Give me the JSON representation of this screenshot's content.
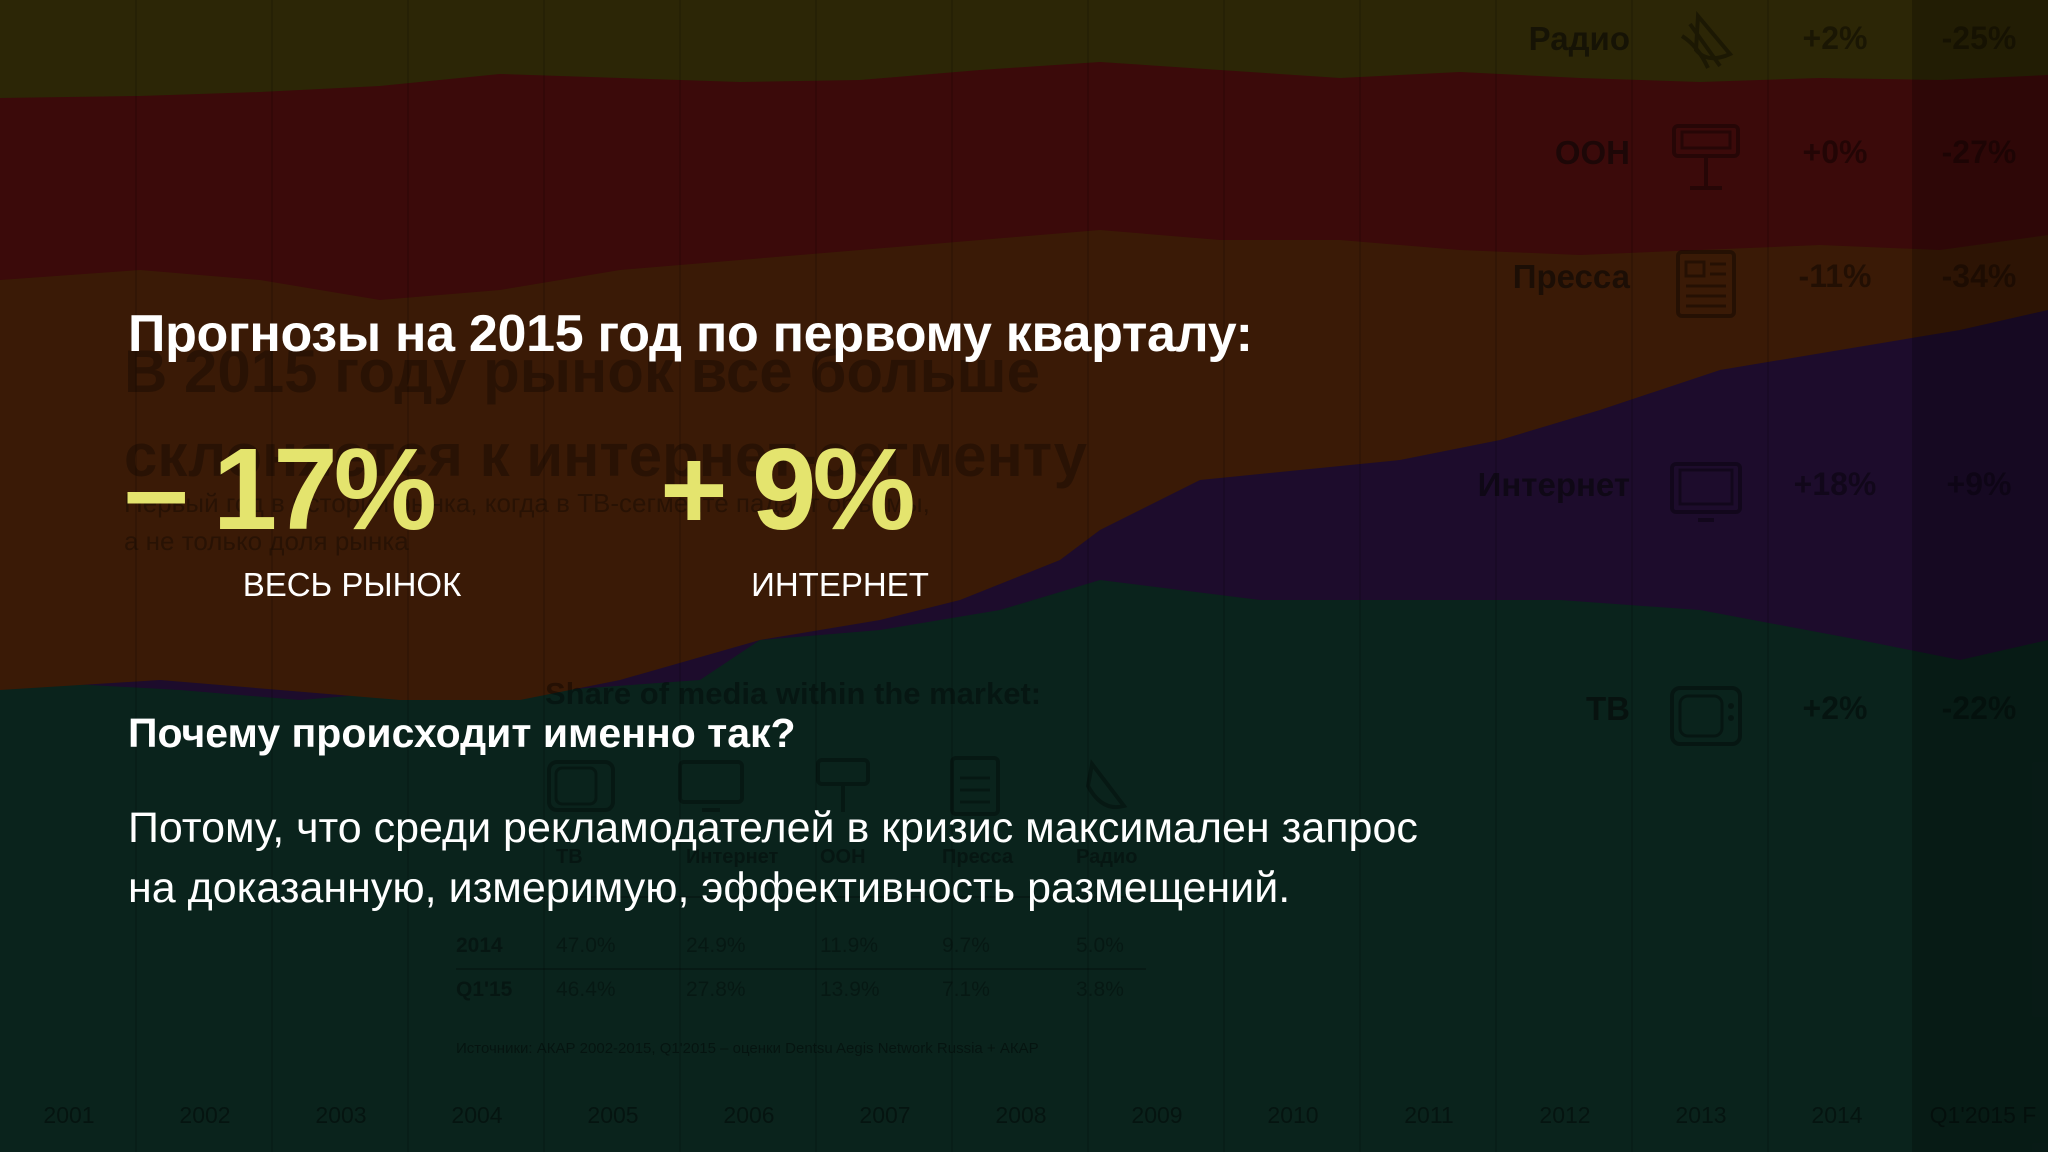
{
  "slide": {
    "title": "Прогнозы на 2015 год по первому кварталу:",
    "stats": [
      {
        "value": "– 17%",
        "label": "ВЕСЬ РЫНОК"
      },
      {
        "value": "+ 9%",
        "label": "ИНТЕРНЕТ"
      }
    ],
    "question": "Почему происходит именно так?",
    "answer_lines": [
      "Потому, что среди рекламодателей в кризис максимален запрос",
      "на доказанную, измеримую, эффективность размещений."
    ]
  },
  "background": {
    "heading_lines": [
      "В 2015 году рынок все больше",
      "склоняется к интернет-сегменту"
    ],
    "sub_lines": [
      "Первый год в истории рынка, когда в ТВ-сегменте падает объемы,",
      "а не только доля рынка"
    ],
    "media_rows": [
      {
        "name": "Радио",
        "icon": "radio-icon",
        "q1": "+2%",
        "year": "-25%"
      },
      {
        "name": "OOH",
        "icon": "billboard-icon",
        "q1": "+0%",
        "year": "-27%"
      },
      {
        "name": "Пресса",
        "icon": "newspaper-icon",
        "q1": "-11%",
        "year": "-34%"
      },
      {
        "name": "Интернет",
        "icon": "monitor-icon",
        "q1": "+18%",
        "year": "+9%"
      },
      {
        "name": "ТВ",
        "icon": "tv-icon",
        "q1": "+2%",
        "year": "-22%"
      }
    ],
    "share_table": {
      "title": "Share of media within the market:",
      "columns": [
        "ТВ",
        "Интернет",
        "OOH",
        "Пресса",
        "Радио"
      ],
      "rows": [
        {
          "label": "2014",
          "values": [
            "47.0%",
            "24.9%",
            "11.9%",
            "9.7%",
            "5.0%"
          ]
        },
        {
          "label": "Q1'15",
          "values": [
            "46.4%",
            "27.8%",
            "13.9%",
            "7.1%",
            "3.8%"
          ]
        }
      ],
      "source": "Источники: АКАР 2002-2015, Q1'2015 – оценки Dentsu Aegis Network Russia + АКАР"
    },
    "years": [
      "2001",
      "2002",
      "2003",
      "2004",
      "2005",
      "2006",
      "2007",
      "2008",
      "2009",
      "2010",
      "2011",
      "2012",
      "2013",
      "2014",
      "Q1'2015 F"
    ],
    "colors": {
      "radio": "#2c2606",
      "ooh": "#3b0a0a",
      "press": "#3a1a06",
      "internet": "#1d0c2c",
      "tv": "#0a231c",
      "accent": "#e4e46e"
    }
  }
}
